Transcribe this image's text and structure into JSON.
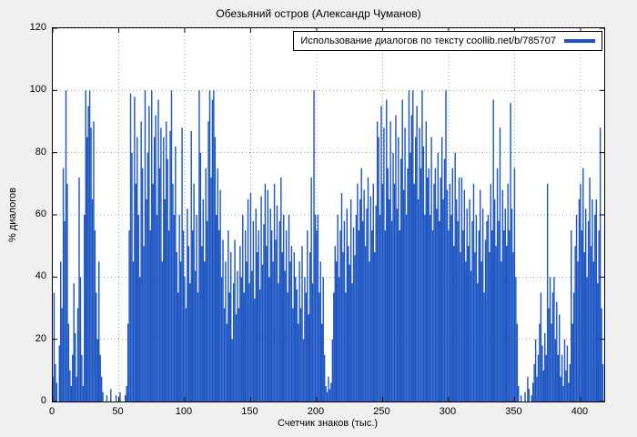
{
  "figure": {
    "background": "#f0f0f0"
  },
  "chart_data": {
    "type": "bar",
    "title": "Обезьяний остров (Александр Чуманов)",
    "xlabel": "Счетчик знаков (тыс.)",
    "ylabel": "% диалогов",
    "legend": {
      "label": "Использование диалогов по тексту coollib.net/b/785707",
      "position": "top-right"
    },
    "bar_color": "#1a53c2",
    "grid": true,
    "xlim": [
      0,
      418
    ],
    "ylim": [
      0,
      120
    ],
    "x_ticks": [
      0,
      50,
      100,
      150,
      200,
      250,
      300,
      350,
      400
    ],
    "y_ticks": [
      0,
      20,
      40,
      60,
      80,
      100,
      120
    ],
    "x_step": 1,
    "values": [
      8,
      35,
      12,
      6,
      0,
      18,
      45,
      30,
      75,
      58,
      100,
      70,
      25,
      10,
      5,
      15,
      38,
      22,
      8,
      30,
      72,
      40,
      15,
      5,
      60,
      100,
      85,
      95,
      100,
      88,
      65,
      90,
      55,
      35,
      20,
      45,
      15,
      8,
      3,
      0,
      0,
      2,
      0,
      0,
      4,
      0,
      0,
      0,
      2,
      0,
      0,
      3,
      0,
      0,
      0,
      2,
      5,
      25,
      55,
      99,
      80,
      45,
      98,
      70,
      85,
      60,
      40,
      90,
      75,
      50,
      100,
      65,
      80,
      95,
      55,
      100,
      70,
      85,
      92,
      60,
      97,
      75,
      88,
      45,
      85,
      65,
      90,
      78,
      55,
      87,
      100,
      70,
      60,
      82,
      48,
      35,
      60,
      45,
      88,
      55,
      40,
      30,
      62,
      50,
      38,
      87,
      55,
      70,
      42,
      60,
      35,
      100,
      80,
      50,
      65,
      45,
      75,
      58,
      90,
      100,
      72,
      97,
      100,
      85,
      60,
      75,
      55,
      68,
      40,
      52,
      30,
      45,
      25,
      55,
      35,
      48,
      20,
      38,
      52,
      28,
      42,
      30,
      50,
      40,
      60,
      35,
      55,
      45,
      65,
      38,
      67,
      42,
      58,
      33,
      62,
      48,
      55,
      36,
      66,
      44,
      57,
      70,
      50,
      68,
      40,
      62,
      55,
      45,
      70,
      52,
      63,
      38,
      58,
      72,
      48,
      60,
      42,
      55,
      35,
      60,
      45,
      50,
      30,
      48,
      40,
      36,
      25,
      45,
      30,
      50,
      20,
      40,
      35,
      55,
      28,
      48,
      72,
      38,
      100,
      60,
      55,
      60,
      35,
      45,
      25,
      40,
      15,
      5,
      3,
      8,
      4,
      6,
      20,
      35,
      50,
      45,
      60,
      40,
      55,
      67,
      48,
      58,
      35,
      62,
      50,
      44,
      65,
      38,
      56,
      47,
      60,
      70,
      55,
      65,
      75,
      58,
      68,
      50,
      62,
      72,
      45,
      66,
      55,
      70,
      48,
      63,
      90,
      85,
      60,
      95,
      70,
      88,
      55,
      97,
      75,
      65,
      90,
      58,
      80,
      70,
      92,
      62,
      85,
      55,
      78,
      97,
      68,
      88,
      60,
      75,
      100,
      80,
      92,
      100,
      70,
      85,
      95,
      65,
      88,
      75,
      100,
      82,
      60,
      90,
      72,
      75,
      60,
      85,
      55,
      70,
      75,
      62,
      80,
      58,
      72,
      85,
      65,
      78,
      100,
      68,
      55,
      70,
      60,
      75,
      50,
      80,
      65,
      58,
      72,
      48,
      72,
      55,
      68,
      45,
      62,
      50,
      65,
      42,
      58,
      70,
      48,
      60,
      38,
      55,
      68,
      45,
      62,
      35,
      52,
      58,
      60,
      48,
      70,
      55,
      97,
      65,
      50,
      75,
      58,
      88,
      45,
      68,
      55,
      62,
      50,
      70,
      55,
      96,
      62,
      48,
      75,
      40,
      25,
      5,
      0,
      2,
      0,
      0,
      3,
      0,
      8,
      4,
      0,
      2,
      6,
      12,
      20,
      8,
      15,
      25,
      35,
      18,
      10,
      22,
      15,
      70,
      30,
      40,
      25,
      35,
      40,
      20,
      32,
      15,
      28,
      8,
      15,
      5,
      20,
      10,
      18,
      6,
      12,
      55,
      25,
      35,
      50,
      60,
      45,
      65,
      70,
      55,
      75,
      48,
      62,
      40,
      58,
      72,
      50,
      65,
      45,
      60,
      65,
      38,
      55,
      88,
      30,
      12
    ]
  }
}
